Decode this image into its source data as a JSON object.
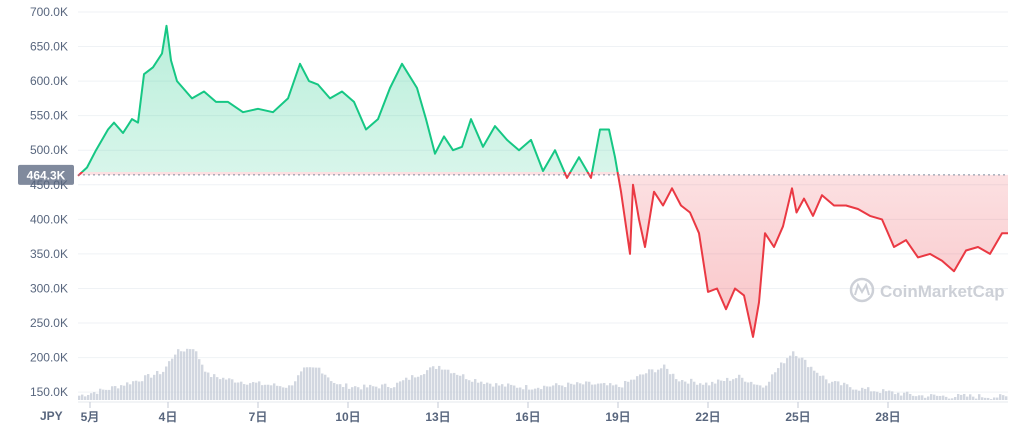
{
  "chart_data": {
    "type": "line",
    "currency": "JPY",
    "reference_value": 464300,
    "reference_label": "464.3K",
    "ylim": [
      130000,
      700000
    ],
    "y_ticks": [
      {
        "v": 700000,
        "label": "700.0K"
      },
      {
        "v": 650000,
        "label": "650.0K"
      },
      {
        "v": 600000,
        "label": "600.0K"
      },
      {
        "v": 550000,
        "label": "550.0K"
      },
      {
        "v": 500000,
        "label": "500.0K"
      },
      {
        "v": 450000,
        "label": "450.0K"
      },
      {
        "v": 400000,
        "label": "400.0K"
      },
      {
        "v": 350000,
        "label": "350.0K"
      },
      {
        "v": 300000,
        "label": "300.0K"
      },
      {
        "v": 250000,
        "label": "250.0K"
      },
      {
        "v": 200000,
        "label": "200.0K"
      },
      {
        "v": 150000,
        "label": "150.0K"
      }
    ],
    "xlim": [
      1,
      32
    ],
    "x_ticks": [
      {
        "v": 1.4,
        "label": "5月"
      },
      {
        "v": 4,
        "label": "4日"
      },
      {
        "v": 7,
        "label": "7日"
      },
      {
        "v": 10,
        "label": "10日"
      },
      {
        "v": 13,
        "label": "13日"
      },
      {
        "v": 16,
        "label": "16日"
      },
      {
        "v": 19,
        "label": "19日"
      },
      {
        "v": 22,
        "label": "22日"
      },
      {
        "v": 25,
        "label": "25日"
      },
      {
        "v": 28,
        "label": "28日"
      }
    ],
    "price_series": {
      "x": [
        1.0,
        1.3,
        1.6,
        2.0,
        2.2,
        2.5,
        2.8,
        3.0,
        3.2,
        3.5,
        3.8,
        3.95,
        4.1,
        4.3,
        4.5,
        4.8,
        5.2,
        5.6,
        6.0,
        6.5,
        7.0,
        7.5,
        8.0,
        8.4,
        8.7,
        9.0,
        9.4,
        9.8,
        10.2,
        10.6,
        11.0,
        11.4,
        11.8,
        12.3,
        12.6,
        12.9,
        13.2,
        13.5,
        13.8,
        14.1,
        14.5,
        14.9,
        15.3,
        15.7,
        16.1,
        16.5,
        16.9,
        17.3,
        17.7,
        18.1,
        18.4,
        18.7,
        18.9,
        19.1,
        19.2,
        19.4,
        19.5,
        19.7,
        19.9,
        20.2,
        20.5,
        20.8,
        21.1,
        21.4,
        21.7,
        22.0,
        22.3,
        22.6,
        22.9,
        23.2,
        23.5,
        23.7,
        23.9,
        24.2,
        24.5,
        24.8,
        24.95,
        25.2,
        25.5,
        25.8,
        26.2,
        26.6,
        27.0,
        27.4,
        27.8,
        28.2,
        28.6,
        29.0,
        29.4,
        29.8,
        30.2,
        30.6,
        31.0,
        31.4,
        31.8,
        32.0
      ],
      "y": [
        463000,
        475000,
        500000,
        530000,
        540000,
        525000,
        545000,
        540000,
        610000,
        620000,
        640000,
        680000,
        630000,
        600000,
        590000,
        575000,
        585000,
        570000,
        570000,
        555000,
        560000,
        555000,
        575000,
        625000,
        600000,
        595000,
        575000,
        585000,
        570000,
        530000,
        545000,
        590000,
        625000,
        590000,
        545000,
        495000,
        520000,
        500000,
        505000,
        545000,
        505000,
        535000,
        515000,
        500000,
        515000,
        470000,
        500000,
        460000,
        490000,
        460000,
        530000,
        530000,
        490000,
        440000,
        410000,
        350000,
        450000,
        400000,
        360000,
        440000,
        420000,
        445000,
        420000,
        410000,
        380000,
        295000,
        300000,
        270000,
        300000,
        290000,
        230000,
        280000,
        380000,
        360000,
        390000,
        445000,
        410000,
        430000,
        405000,
        435000,
        420000,
        420000,
        415000,
        405000,
        400000,
        360000,
        370000,
        345000,
        350000,
        340000,
        325000,
        355000,
        360000,
        350000,
        380000,
        380000
      ]
    },
    "volume_series": {
      "x": [
        1.0,
        2.0,
        3.0,
        3.8,
        4.2,
        4.8,
        5.3,
        6.0,
        7.0,
        8.0,
        8.5,
        9.0,
        9.6,
        10.5,
        11.5,
        12.0,
        12.5,
        13.0,
        14.0,
        15.0,
        16.0,
        17.0,
        18.0,
        19.0,
        20.0,
        20.5,
        21.0,
        22.0,
        23.0,
        23.8,
        24.5,
        24.8,
        25.3,
        26.0,
        27.0,
        28.0,
        29.0,
        30.0,
        31.0,
        32.0
      ],
      "y": [
        145000,
        155000,
        168000,
        180000,
        207000,
        215000,
        175000,
        168000,
        162000,
        158000,
        182000,
        185000,
        160000,
        157000,
        160000,
        170000,
        180000,
        188000,
        170000,
        160000,
        157000,
        160000,
        162000,
        158000,
        180000,
        186000,
        168000,
        162000,
        172000,
        158000,
        195000,
        210000,
        190000,
        165000,
        155000,
        150000,
        145000,
        144000,
        144000,
        143000
      ]
    }
  }
}
